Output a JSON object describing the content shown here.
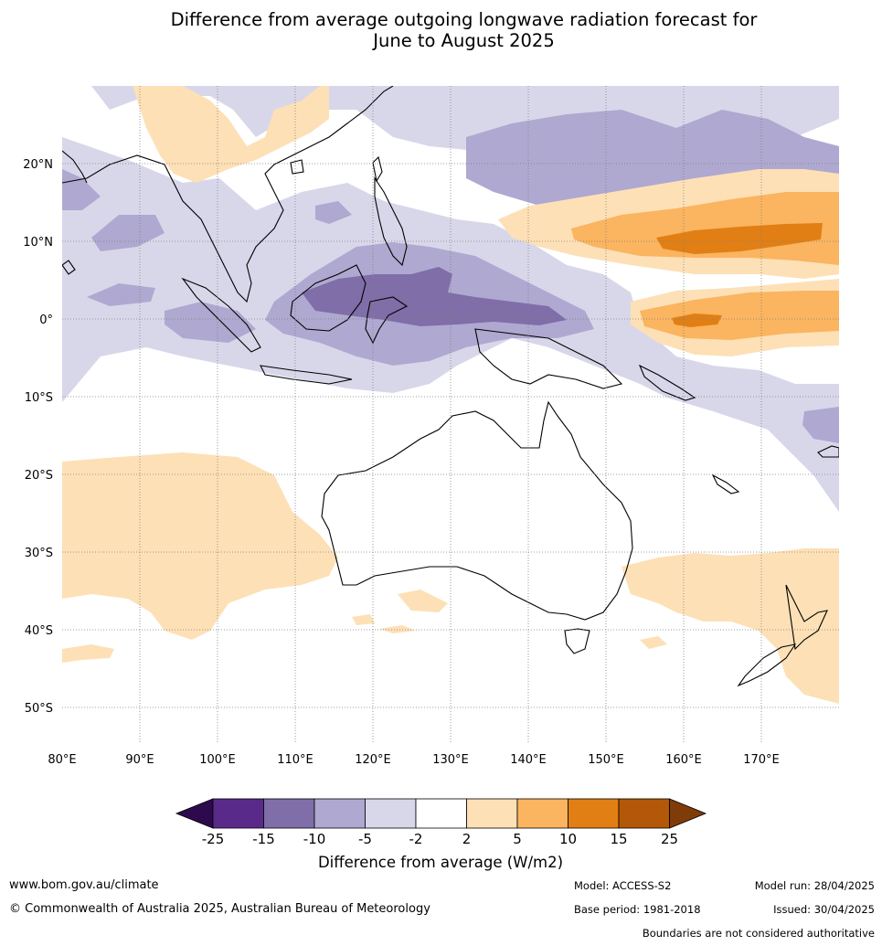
{
  "title_line1": "Difference from average outgoing longwave radiation forecast for",
  "title_line2": "June to August 2025",
  "map": {
    "lon_ticks": [
      "80°E",
      "90°E",
      "100°E",
      "110°E",
      "120°E",
      "130°E",
      "140°E",
      "150°E",
      "160°E",
      "170°E"
    ],
    "lat_ticks": [
      "20°N",
      "10°N",
      "0°",
      "10°S",
      "20°S",
      "30°S",
      "40°S",
      "50°S"
    ],
    "region": "Australia, Indian Ocean and western Pacific",
    "features": [
      "Australia",
      "New Zealand",
      "Papua New Guinea",
      "Indonesia",
      "Southeast Asia"
    ]
  },
  "colorbar": {
    "title": "Difference from average (W/m2)",
    "tick_labels": [
      "-25",
      "-15",
      "-10",
      "-5",
      "-2",
      "2",
      "5",
      "10",
      "15",
      "25"
    ],
    "colors": {
      "lt_-25": "#2d0a4e",
      "-25_-15": "#5a2a8a",
      "-15_-10": "#7f6ea8",
      "-10_-5": "#afa8d0",
      "-5_-2": "#d8d7ea",
      "-2_2": "#ffffff",
      "2_5": "#fde0b6",
      "5_10": "#fbb45f",
      "10_15": "#e17f14",
      "15_25": "#b35808",
      "gt_25": "#7f3b08"
    }
  },
  "footer": {
    "website": "www.bom.gov.au/climate",
    "copyright": "© Commonwealth of Australia 2025, Australian Bureau of Meteorology",
    "model": "Model: ACCESS-S2",
    "model_run": "Model run: 28/04/2025",
    "base_period": "Base period: 1981-2018",
    "issued": "Issued: 30/04/2025",
    "boundaries": "Boundaries are not considered authoritative"
  }
}
